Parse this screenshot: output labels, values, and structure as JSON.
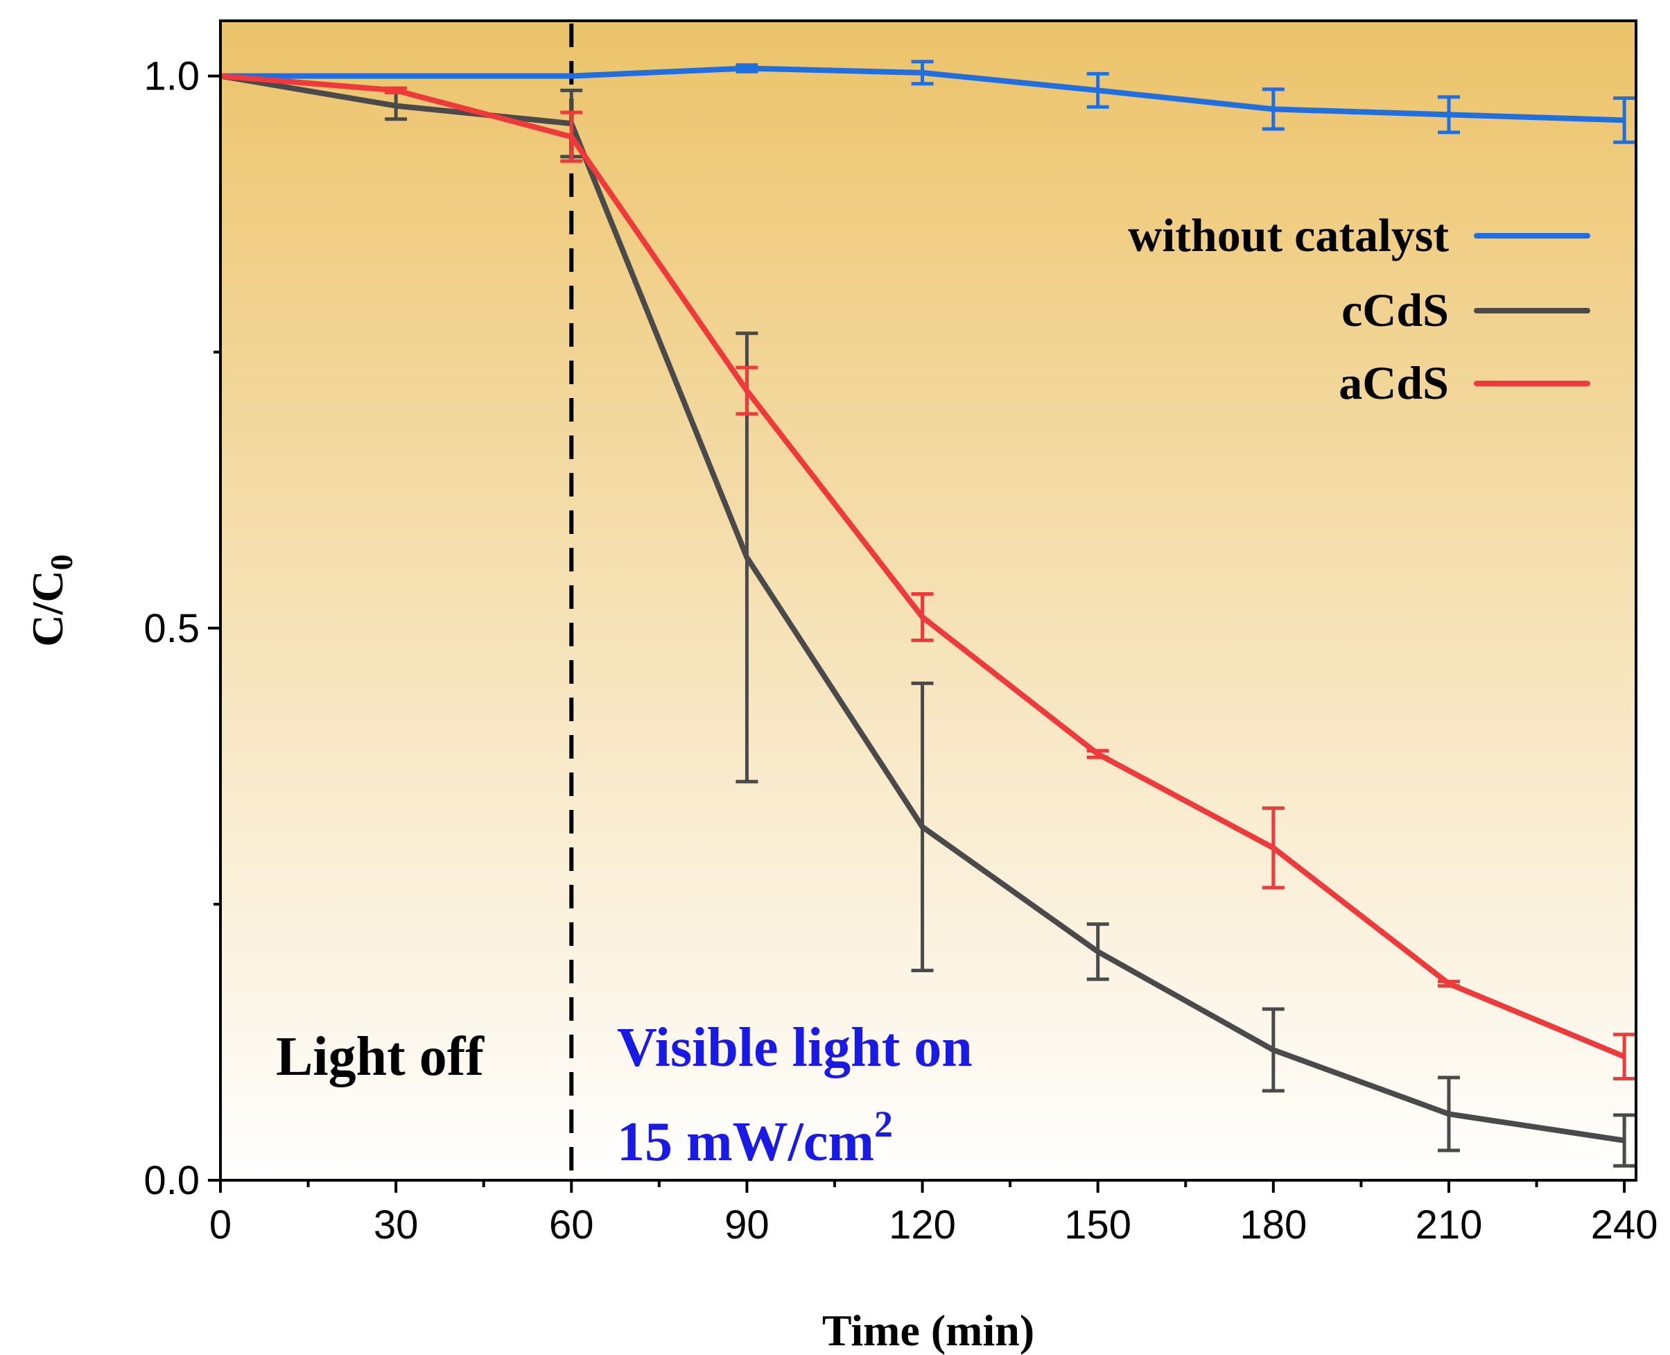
{
  "chart_data": {
    "type": "line",
    "title": "",
    "xlabel": "Time (min)",
    "ylabel": "C/C",
    "ylabel_sub": "0",
    "xlim": [
      0,
      242
    ],
    "ylim": [
      0.0,
      1.05
    ],
    "xticks": [
      0,
      30,
      60,
      90,
      120,
      150,
      180,
      210,
      240
    ],
    "xtick_labels": [
      "0",
      "30",
      "60",
      "90",
      "120",
      "150",
      "180",
      "210",
      "240"
    ],
    "xminor": [
      15,
      45,
      75,
      105,
      135,
      165,
      195,
      225
    ],
    "yticks": [
      0.0,
      0.5,
      1.0
    ],
    "ytick_labels": [
      "0.0",
      "0.5",
      "1.0"
    ],
    "yminor": [
      0.25,
      0.75
    ],
    "light_on_time": 60,
    "background_gradient": {
      "top": "#ecc36a",
      "bottom": "#ffffff"
    },
    "legend_position": "upper-right",
    "x": [
      0,
      30,
      60,
      90,
      120,
      150,
      180,
      210,
      240
    ],
    "series": [
      {
        "name": "without catalyst",
        "color": "#1f6fe0",
        "x": [
          0,
          60,
          90,
          120,
          150,
          180,
          210,
          240
        ],
        "values": [
          1.0,
          1.0,
          1.007,
          1.003,
          0.987,
          0.97,
          0.965,
          0.96
        ],
        "errors": [
          0,
          0,
          0.003,
          0.01,
          0.015,
          0.018,
          0.016,
          0.02
        ]
      },
      {
        "name": "cCdS",
        "color": "#4a4a4a",
        "x": [
          0,
          30,
          60,
          90,
          120,
          150,
          180,
          210,
          240
        ],
        "values": [
          1.0,
          0.973,
          0.957,
          0.564,
          0.32,
          0.207,
          0.118,
          0.06,
          0.036
        ],
        "errors": [
          0,
          0.012,
          0.03,
          0.203,
          0.13,
          0.025,
          0.037,
          0.033,
          0.023
        ]
      },
      {
        "name": "aCdS",
        "color": "#ee3a3a",
        "x": [
          0,
          30,
          60,
          90,
          120,
          150,
          180,
          210,
          240
        ],
        "values": [
          1.0,
          0.987,
          0.945,
          0.715,
          0.51,
          0.386,
          0.301,
          0.178,
          0.112
        ],
        "errors": [
          0,
          0.002,
          0.022,
          0.021,
          0.021,
          0.003,
          0.036,
          0.002,
          0.02
        ]
      }
    ],
    "annotations": [
      {
        "text": "Light off",
        "color": "#000000"
      },
      {
        "text": "Visible light on",
        "color": "#1a1ae6"
      },
      {
        "text": "15 mW/cm",
        "sup": "2",
        "color": "#1a1ae6"
      }
    ]
  }
}
